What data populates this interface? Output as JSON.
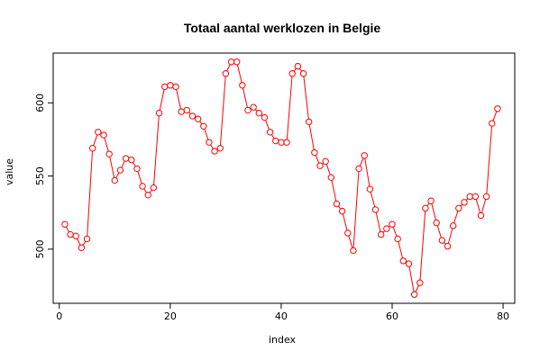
{
  "chart_data": {
    "type": "line",
    "title": "Totaal aantal werklozen in Belgie",
    "xlabel": "index",
    "ylabel": "value",
    "xlim": [
      -1.1,
      82.1
    ],
    "ylim": [
      463,
      634
    ],
    "x_ticks": [
      0,
      20,
      40,
      60,
      80
    ],
    "y_ticks": [
      500,
      550,
      600
    ],
    "x_tick_labels": [
      "0",
      "20",
      "40",
      "60",
      "80"
    ],
    "y_tick_labels": [
      "500",
      "550",
      "600"
    ],
    "grid": false,
    "line_color": "#ff0000",
    "marker": "open-circle",
    "x": [
      1,
      2,
      3,
      4,
      5,
      6,
      7,
      8,
      9,
      10,
      11,
      12,
      13,
      14,
      15,
      16,
      17,
      18,
      19,
      20,
      21,
      22,
      23,
      24,
      25,
      26,
      27,
      28,
      29,
      30,
      31,
      32,
      33,
      34,
      35,
      36,
      37,
      38,
      39,
      40,
      41,
      42,
      43,
      44,
      45,
      46,
      47,
      48,
      49,
      50,
      51,
      52,
      53,
      54,
      55,
      56,
      57,
      58,
      59,
      60,
      61,
      62,
      63,
      64,
      65,
      66,
      67,
      68,
      69,
      70,
      71,
      72,
      73,
      74,
      75,
      76,
      77,
      78,
      79
    ],
    "values": [
      517,
      510,
      509,
      501,
      507,
      569,
      580,
      578,
      565,
      547,
      554,
      562,
      561,
      555,
      543,
      537,
      542,
      593,
      611,
      612,
      611,
      594,
      595,
      591,
      589,
      584,
      573,
      567,
      569,
      620,
      628,
      628,
      612,
      595,
      597,
      593,
      590,
      580,
      574,
      573,
      573,
      620,
      625,
      620,
      587,
      566,
      557,
      560,
      549,
      531,
      526,
      511,
      499,
      555,
      564,
      541,
      527,
      510,
      514,
      517,
      507,
      492,
      490,
      469,
      477,
      528,
      533,
      518,
      506,
      502,
      516,
      528,
      532,
      536,
      536,
      523,
      536,
      586,
      596
    ]
  }
}
